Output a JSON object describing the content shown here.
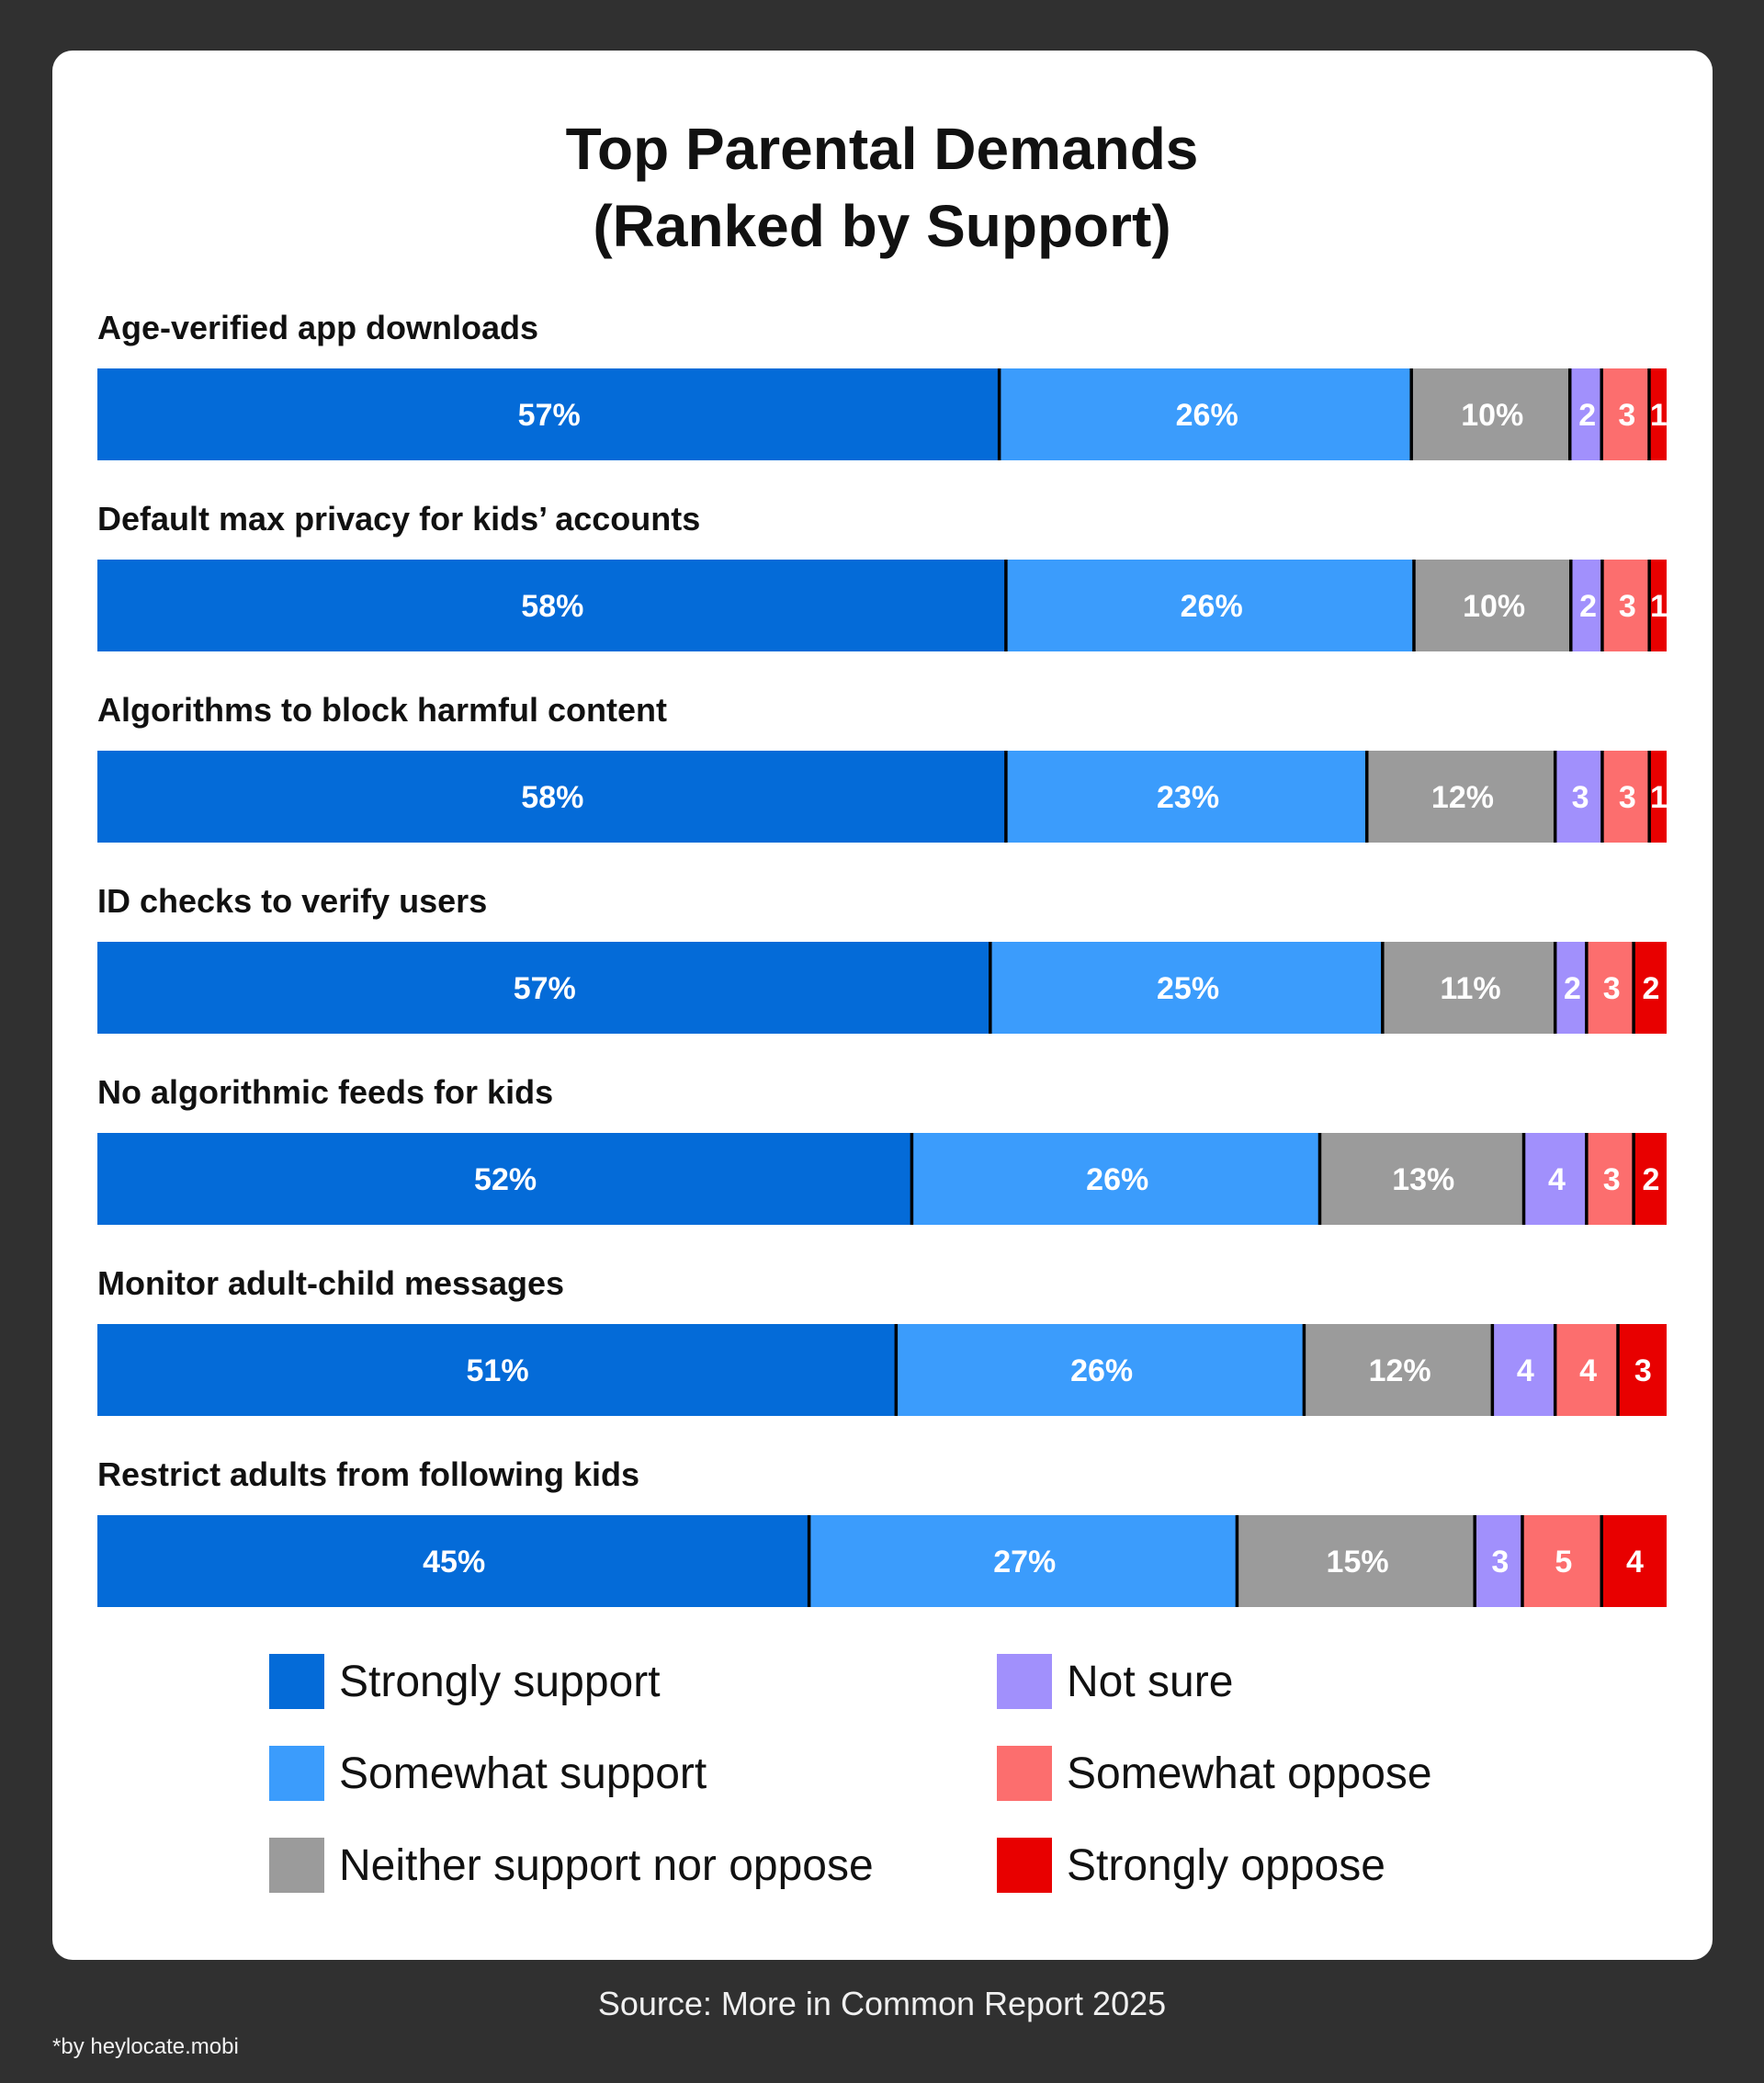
{
  "chart_data": {
    "type": "bar",
    "orientation": "horizontal",
    "stacked": true,
    "title": [
      "Top Parental Demands",
      "(Ranked by Support)"
    ],
    "categories": [
      "Age-verified app downloads",
      "Default max privacy for kids’ accounts",
      "Algorithms to block harmful content",
      "ID checks to verify users",
      "No algorithmic feeds for kids",
      "Monitor adult-child messages",
      "Restrict adults from following kids"
    ],
    "series": [
      {
        "name": "Strongly support",
        "color": "#046BD8",
        "values": [
          57,
          58,
          58,
          57,
          52,
          51,
          45
        ],
        "labels": [
          "57%",
          "58%",
          "58%",
          "57%",
          "52%",
          "51%",
          "45%"
        ]
      },
      {
        "name": "Somewhat support",
        "color": "#3B9CFC",
        "values": [
          26,
          26,
          23,
          25,
          26,
          26,
          27
        ],
        "labels": [
          "26%",
          "26%",
          "23%",
          "25%",
          "26%",
          "26%",
          "27%"
        ]
      },
      {
        "name": "Neither support nor oppose",
        "color": "#9B9B9B",
        "values": [
          10,
          10,
          12,
          11,
          13,
          12,
          15
        ],
        "labels": [
          "10%",
          "10%",
          "12%",
          "11%",
          "13%",
          "12%",
          "15%"
        ]
      },
      {
        "name": "Not sure",
        "color": "#A190FC",
        "values": [
          2,
          2,
          3,
          2,
          4,
          4,
          3
        ],
        "labels": [
          "2",
          "2",
          "3",
          "2",
          "4",
          "4",
          "3"
        ]
      },
      {
        "name": "Somewhat oppose",
        "color": "#FC6E6E",
        "values": [
          3,
          3,
          3,
          3,
          3,
          4,
          5
        ],
        "labels": [
          "3",
          "3",
          "3",
          "3",
          "3",
          "4",
          "5"
        ]
      },
      {
        "name": "Strongly oppose",
        "color": "#E80000",
        "values": [
          1,
          1,
          1,
          2,
          2,
          3,
          4
        ],
        "labels": [
          "1",
          "1",
          "1",
          "2",
          "2",
          "3",
          "4"
        ]
      }
    ],
    "legend_position": "bottom"
  },
  "source": "Source: More in Common Report 2025",
  "credit": "*by heylocate.mobi"
}
